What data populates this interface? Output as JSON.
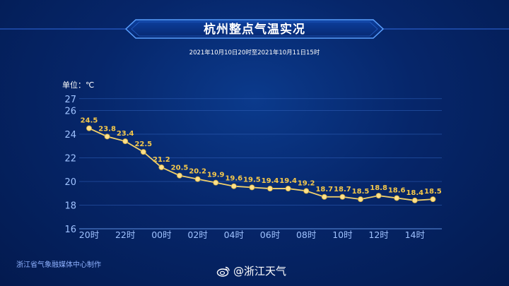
{
  "header": {
    "title": "杭州整点气温实况",
    "subtitle": "2021年10月10日20时至2021年10月11日15时"
  },
  "unit_label": "单位：℃",
  "footer": {
    "credit": "浙江省气象融媒体中心制作",
    "weibo_handle": "@浙江天气"
  },
  "colors": {
    "line": "#f2d16b",
    "point": "#ffe08a",
    "label": "#f5c84a",
    "axis_text": "#9fc2ff",
    "grid": "#2f5fb8"
  },
  "chart_data": {
    "type": "line",
    "x": [
      "20时",
      "21时",
      "22时",
      "23时",
      "00时",
      "01时",
      "02时",
      "03时",
      "04时",
      "05时",
      "06时",
      "07时",
      "08时",
      "09时",
      "10时",
      "11时",
      "12时",
      "13时",
      "14时",
      "15时"
    ],
    "x_tick_labels": [
      "20时",
      "22时",
      "00时",
      "02时",
      "04时",
      "06时",
      "08时",
      "10时",
      "12时",
      "14时"
    ],
    "series": [
      {
        "values": [
          24.5,
          23.8,
          23.4,
          22.5,
          21.2,
          20.5,
          20.2,
          19.9,
          19.6,
          19.5,
          19.4,
          19.4,
          19.2,
          18.7,
          18.7,
          18.5,
          18.8,
          18.6,
          18.4,
          18.5
        ]
      }
    ],
    "ylim": [
      16,
      27
    ],
    "y_ticks": [
      16,
      18,
      20,
      22,
      24,
      26,
      27
    ],
    "grid": true,
    "data_labels": true
  }
}
